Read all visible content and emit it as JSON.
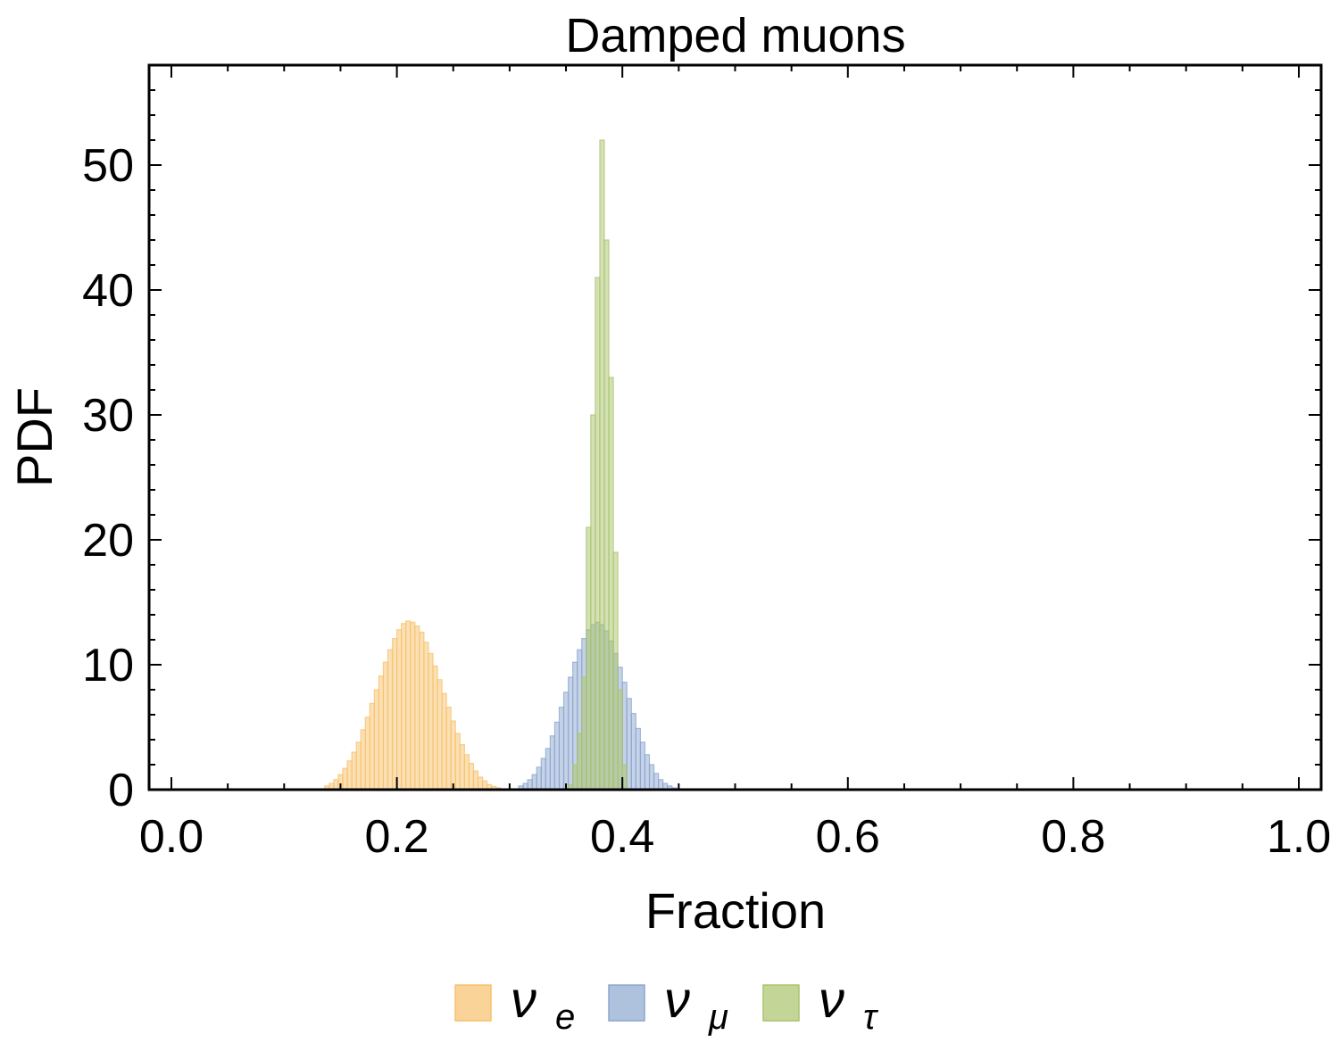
{
  "chart_data": {
    "type": "bar",
    "title": "Damped muons",
    "xlabel": "Fraction",
    "ylabel": "PDF",
    "xlim": [
      0.0,
      1.0
    ],
    "ylim": [
      0,
      58
    ],
    "x_ticks": [
      "0.0",
      "0.2",
      "0.4",
      "0.6",
      "0.8",
      "1.0"
    ],
    "y_ticks": [
      "0",
      "10",
      "20",
      "30",
      "40",
      "50"
    ],
    "x_tick_values": [
      0.0,
      0.2,
      0.4,
      0.6,
      0.8,
      1.0
    ],
    "y_tick_values": [
      0,
      10,
      20,
      30,
      40,
      50
    ],
    "grid": false,
    "legend_position": "bottom-center",
    "bin_width": 0.004,
    "series": [
      {
        "name": "ν_e",
        "label_main": "ν",
        "label_sub": "e",
        "color": "#f7c16b",
        "bin_start": 0.136,
        "values": [
          0.3,
          0.5,
          0.8,
          1.2,
          1.7,
          2.3,
          3.0,
          3.8,
          4.8,
          5.8,
          6.9,
          8.0,
          9.1,
          10.2,
          11.2,
          12.1,
          12.8,
          13.3,
          13.5,
          13.4,
          13.1,
          12.6,
          11.8,
          10.9,
          9.9,
          8.8,
          7.7,
          6.6,
          5.5,
          4.5,
          3.6,
          2.8,
          2.1,
          1.5,
          1.0,
          0.7,
          0.4,
          0.25,
          0.15
        ]
      },
      {
        "name": "ν_μ",
        "label_main": "ν",
        "label_sub": "μ",
        "color": "#8ba6cf",
        "bin_start": 0.308,
        "values": [
          0.3,
          0.5,
          0.8,
          1.2,
          1.8,
          2.5,
          3.3,
          4.3,
          5.4,
          6.6,
          7.8,
          9.0,
          10.2,
          11.2,
          12.1,
          12.8,
          13.2,
          13.4,
          13.2,
          12.7,
          11.9,
          10.9,
          9.8,
          8.6,
          7.3,
          6.1,
          4.9,
          3.8,
          2.8,
          2.0,
          1.3,
          0.8,
          0.5,
          0.3,
          0.15
        ]
      },
      {
        "name": "ν_τ",
        "label_main": "ν",
        "label_sub": "τ",
        "color": "#a9c46c",
        "bin_start": 0.352,
        "values": [
          0.4,
          2.0,
          4.5,
          9.0,
          21.0,
          30.0,
          41.0,
          52.0,
          44.0,
          33.0,
          19.0,
          8.0,
          2.0
        ]
      }
    ]
  }
}
